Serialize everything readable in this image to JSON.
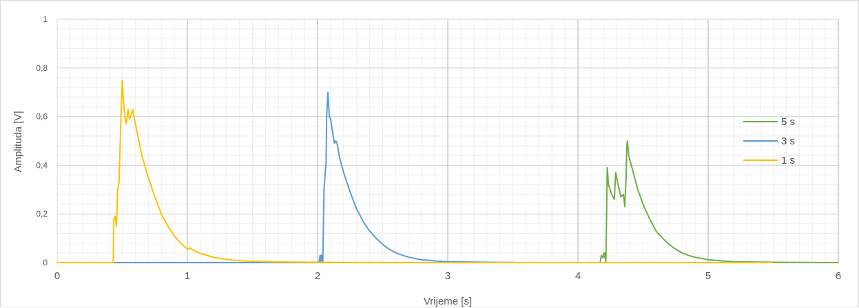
{
  "chart_data": {
    "type": "line",
    "title": "",
    "xlabel": "Vrijeme [s]",
    "ylabel": "Amplituda [V]",
    "xlim": [
      0,
      6
    ],
    "ylim": [
      0,
      1
    ],
    "x_ticks": [
      0,
      1,
      2,
      3,
      4,
      5,
      6
    ],
    "x_tick_labels": [
      "0",
      "1",
      "2",
      "3",
      "4",
      "5",
      "6"
    ],
    "y_ticks": [
      0,
      0.2,
      0.4,
      0.6,
      0.8,
      1
    ],
    "y_tick_labels": [
      "0",
      "0,2",
      "0,4",
      "0,6",
      "0,8",
      "1"
    ],
    "grid": true,
    "legend_position": "right",
    "series": [
      {
        "name": "5 s",
        "color": "#70ad47",
        "points": [
          [
            0,
            0
          ],
          [
            4.17,
            0
          ],
          [
            4.18,
            0.03
          ],
          [
            4.19,
            0.02
          ],
          [
            4.2,
            0.04
          ],
          [
            4.205,
            0.02
          ],
          [
            4.21,
            0.04
          ],
          [
            4.215,
            0.0
          ],
          [
            4.22,
            0.2
          ],
          [
            4.225,
            0.39
          ],
          [
            4.235,
            0.32
          ],
          [
            4.26,
            0.28
          ],
          [
            4.28,
            0.26
          ],
          [
            4.29,
            0.37
          ],
          [
            4.305,
            0.33
          ],
          [
            4.33,
            0.27
          ],
          [
            4.35,
            0.28
          ],
          [
            4.36,
            0.23
          ],
          [
            4.37,
            0.35
          ],
          [
            4.375,
            0.48
          ],
          [
            4.38,
            0.5
          ],
          [
            4.39,
            0.44
          ],
          [
            4.42,
            0.38
          ],
          [
            4.46,
            0.3
          ],
          [
            4.5,
            0.24
          ],
          [
            4.55,
            0.18
          ],
          [
            4.6,
            0.13
          ],
          [
            4.65,
            0.1
          ],
          [
            4.7,
            0.075
          ],
          [
            4.75,
            0.055
          ],
          [
            4.8,
            0.04
          ],
          [
            4.85,
            0.03
          ],
          [
            4.9,
            0.022
          ],
          [
            5.0,
            0.012
          ],
          [
            5.1,
            0.007
          ],
          [
            5.2,
            0.004
          ],
          [
            5.4,
            0.002
          ],
          [
            5.6,
            0.001
          ],
          [
            6.0,
            0
          ]
        ]
      },
      {
        "name": "3 s",
        "color": "#5b9bd5",
        "points": [
          [
            0,
            0
          ],
          [
            2.01,
            0
          ],
          [
            2.02,
            0.03
          ],
          [
            2.025,
            0.0
          ],
          [
            2.03,
            0.03
          ],
          [
            2.04,
            0.0
          ],
          [
            2.05,
            0.3
          ],
          [
            2.06,
            0.38
          ],
          [
            2.065,
            0.4
          ],
          [
            2.07,
            0.6
          ],
          [
            2.08,
            0.7
          ],
          [
            2.09,
            0.6
          ],
          [
            2.1,
            0.59
          ],
          [
            2.12,
            0.52
          ],
          [
            2.13,
            0.49
          ],
          [
            2.14,
            0.5
          ],
          [
            2.15,
            0.49
          ],
          [
            2.17,
            0.43
          ],
          [
            2.2,
            0.37
          ],
          [
            2.25,
            0.29
          ],
          [
            2.3,
            0.22
          ],
          [
            2.35,
            0.17
          ],
          [
            2.4,
            0.13
          ],
          [
            2.45,
            0.1
          ],
          [
            2.5,
            0.075
          ],
          [
            2.55,
            0.055
          ],
          [
            2.6,
            0.04
          ],
          [
            2.7,
            0.022
          ],
          [
            2.8,
            0.012
          ],
          [
            2.9,
            0.007
          ],
          [
            3.0,
            0.004
          ],
          [
            3.2,
            0.002
          ],
          [
            3.4,
            0.001
          ],
          [
            3.6,
            0
          ]
        ]
      },
      {
        "name": "1 s",
        "color": "#ffc000",
        "points": [
          [
            0,
            0
          ],
          [
            0.42,
            0
          ],
          [
            0.43,
            0.0
          ],
          [
            0.435,
            0.18
          ],
          [
            0.445,
            0.19
          ],
          [
            0.455,
            0.15
          ],
          [
            0.465,
            0.3
          ],
          [
            0.475,
            0.33
          ],
          [
            0.49,
            0.6
          ],
          [
            0.5,
            0.75
          ],
          [
            0.51,
            0.66
          ],
          [
            0.52,
            0.6
          ],
          [
            0.53,
            0.57
          ],
          [
            0.545,
            0.63
          ],
          [
            0.555,
            0.59
          ],
          [
            0.565,
            0.6
          ],
          [
            0.58,
            0.63
          ],
          [
            0.59,
            0.6
          ],
          [
            0.62,
            0.52
          ],
          [
            0.65,
            0.44
          ],
          [
            0.7,
            0.35
          ],
          [
            0.75,
            0.27
          ],
          [
            0.8,
            0.2
          ],
          [
            0.85,
            0.15
          ],
          [
            0.9,
            0.11
          ],
          [
            0.95,
            0.08
          ],
          [
            1.0,
            0.055
          ],
          [
            1.02,
            0.06
          ],
          [
            1.05,
            0.05
          ],
          [
            1.1,
            0.038
          ],
          [
            1.2,
            0.022
          ],
          [
            1.3,
            0.013
          ],
          [
            1.4,
            0.008
          ],
          [
            1.6,
            0.004
          ],
          [
            1.8,
            0.002
          ],
          [
            2.0,
            0.001
          ],
          [
            3.0,
            0.0
          ],
          [
            5.5,
            0.0
          ]
        ]
      }
    ]
  }
}
